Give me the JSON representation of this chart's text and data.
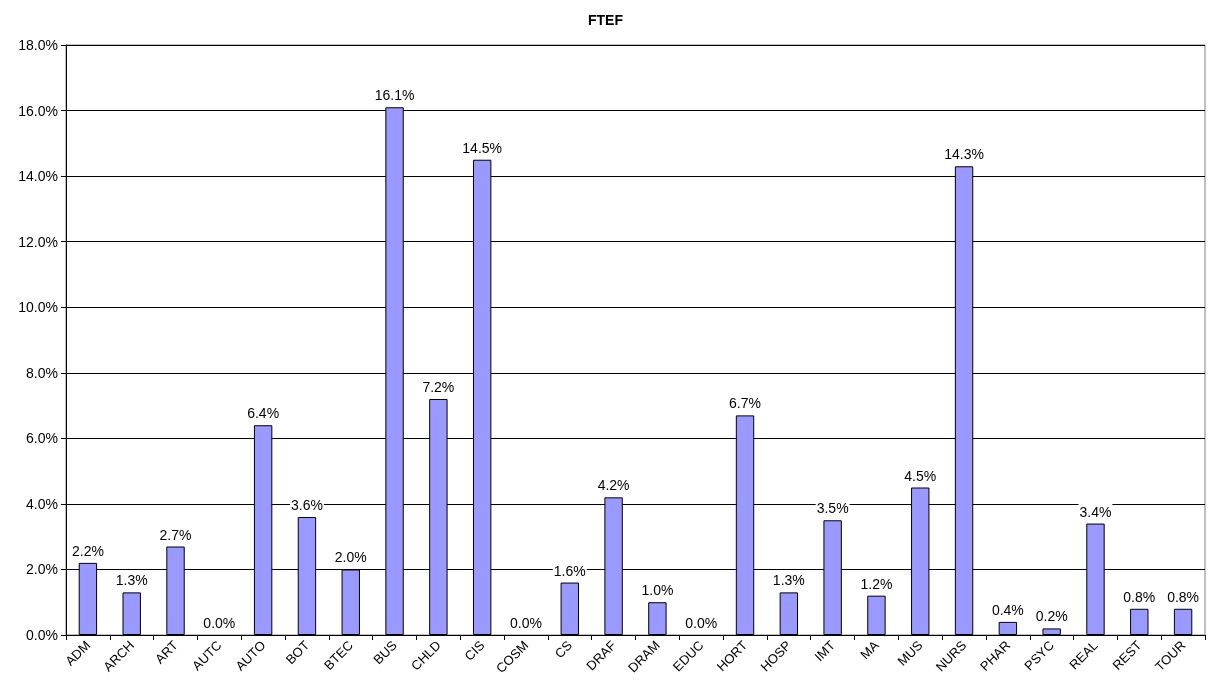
{
  "chart_data": {
    "type": "bar",
    "title": "FTEF",
    "categories": [
      "ADM",
      "ARCH",
      "ART",
      "AUTC",
      "AUTO",
      "BOT",
      "BTEC",
      "BUS",
      "CHLD",
      "CIS",
      "COSM",
      "CS",
      "DRAF",
      "DRAM",
      "EDUC",
      "HORT",
      "HOSP",
      "IMT",
      "MA",
      "MUS",
      "NURS",
      "PHAR",
      "PSYC",
      "REAL",
      "REST",
      "TOUR"
    ],
    "values": [
      2.2,
      1.3,
      2.7,
      0.0,
      6.4,
      3.6,
      2.0,
      16.1,
      7.2,
      14.5,
      0.0,
      1.6,
      4.2,
      1.0,
      0.0,
      6.7,
      1.3,
      3.5,
      1.2,
      4.5,
      14.3,
      0.4,
      0.2,
      3.4,
      0.8,
      0.8
    ],
    "value_labels": [
      "2.2%",
      "1.3%",
      "2.7%",
      "0.0%",
      "6.4%",
      "3.6%",
      "2.0%",
      "16.1%",
      "7.2%",
      "14.5%",
      "0.0%",
      "1.6%",
      "4.2%",
      "1.0%",
      "0.0%",
      "6.7%",
      "1.3%",
      "3.5%",
      "1.2%",
      "4.5%",
      "14.3%",
      "0.4%",
      "0.2%",
      "3.4%",
      "0.8%",
      "0.8%"
    ],
    "color": "#9999ff",
    "ylim": [
      0,
      18
    ],
    "yticks": [
      {
        "value": 0,
        "label": "0.0%"
      },
      {
        "value": 2,
        "label": "2.0%"
      },
      {
        "value": 4,
        "label": "4.0%"
      },
      {
        "value": 6,
        "label": "6.0%"
      },
      {
        "value": 8,
        "label": "8.0%"
      },
      {
        "value": 10,
        "label": "10.0%"
      },
      {
        "value": 12,
        "label": "12.0%"
      },
      {
        "value": 14,
        "label": "14.0%"
      },
      {
        "value": 16,
        "label": "16.0%"
      },
      {
        "value": 18,
        "label": "18.0%"
      }
    ],
    "grid": "y"
  }
}
